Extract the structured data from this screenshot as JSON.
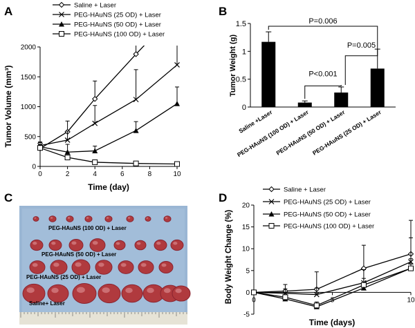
{
  "panel_letters": {
    "a": "A",
    "b": "B",
    "c": "C",
    "d": "D"
  },
  "chart_data": [
    {
      "id": "A",
      "type": "line",
      "title": "",
      "xlabel": "Time (day)",
      "ylabel": "Tumor Volume (mm³)",
      "xlim": [
        0,
        10
      ],
      "ylim": [
        0,
        2000
      ],
      "xticks": [
        0,
        2,
        4,
        6,
        8,
        10
      ],
      "yticks": [
        0,
        500,
        1000,
        1500,
        2000
      ],
      "legend_position": "top",
      "series": [
        {
          "name": "Saline + Laser",
          "marker": "diamond",
          "x": [
            0,
            2,
            4,
            7,
            10
          ],
          "y": [
            300,
            580,
            1130,
            1880,
            2600
          ],
          "err": [
            60,
            180,
            300,
            200,
            300
          ]
        },
        {
          "name": "PEG-HAuNS (25 OD) + Laser",
          "marker": "x",
          "x": [
            0,
            2,
            4,
            7,
            10
          ],
          "y": [
            350,
            440,
            720,
            1120,
            1700
          ],
          "err": [
            50,
            150,
            300,
            500,
            600
          ]
        },
        {
          "name": "PEG-HAuNS (50 OD) + Laser",
          "marker": "triangle",
          "x": [
            0,
            2,
            4,
            7,
            10
          ],
          "y": [
            330,
            240,
            260,
            600,
            1050
          ],
          "err": [
            80,
            130,
            80,
            150,
            280
          ]
        },
        {
          "name": "PEG-HAuNS (100 OD) + Laser",
          "marker": "square",
          "x": [
            0,
            2,
            4,
            7,
            10
          ],
          "y": [
            310,
            150,
            70,
            50,
            40
          ],
          "err": [
            40,
            40,
            20,
            10,
            10
          ]
        }
      ]
    },
    {
      "id": "B",
      "type": "bar",
      "title": "",
      "xlabel": "",
      "ylabel": "Tumor Weight (g)",
      "ylim": [
        0,
        1.5
      ],
      "yticks": [
        0,
        0.5,
        1,
        1.5
      ],
      "yticklabels": [
        "0",
        "0.5",
        "1",
        "1.5"
      ],
      "categories": [
        "Saline +Laser",
        "PEG-HAuNS (100 OD) + Laser",
        "PEG-HAuNS (50 OD) + Laser",
        "PEG-HAuNS (25 OD) + Laser"
      ],
      "values": [
        1.17,
        0.08,
        0.26,
        0.69
      ],
      "errors": [
        0.18,
        0.03,
        0.1,
        0.35
      ],
      "annotations": [
        {
          "text": "P=0.006",
          "from": 0,
          "to": 3
        },
        {
          "text": "P<0.001",
          "from": 1,
          "to": 2
        },
        {
          "text": "P=0.005",
          "from": 2,
          "to": 3
        }
      ]
    },
    {
      "id": "D",
      "type": "line",
      "title": "",
      "xlabel": "Time (days)",
      "ylabel": "Body Weight Change (%)",
      "xlim": [
        0,
        10
      ],
      "ylim": [
        -5,
        20
      ],
      "xticks": [
        0,
        5,
        10
      ],
      "yticks": [
        -5,
        0,
        5,
        10,
        15,
        20
      ],
      "legend_position": "top",
      "series": [
        {
          "name": "Saline + Laser",
          "marker": "diamond",
          "x": [
            0,
            2,
            4,
            7,
            10
          ],
          "y": [
            0,
            0.3,
            0.7,
            5.5,
            8.8
          ],
          "err": [
            0.3,
            1.5,
            4.0,
            5.3,
            7.7
          ]
        },
        {
          "name": "PEG-HAuNS (25 OD) + Laser",
          "marker": "x",
          "x": [
            0,
            2,
            4,
            7,
            10
          ],
          "y": [
            0,
            -0.2,
            -0.5,
            2.2,
            7.0
          ],
          "err": [
            0.3,
            1.0,
            1.5,
            3.0,
            5.5
          ]
        },
        {
          "name": "PEG-HAuNS (50 OD) + Laser",
          "marker": "triangle",
          "x": [
            0,
            2,
            4,
            7,
            10
          ],
          "y": [
            0,
            -1.5,
            -3.3,
            1.0,
            5.5
          ],
          "err": [
            0.3,
            0.5,
            0.8,
            1.0,
            1.0
          ]
        },
        {
          "name": "PEG-HAuNS (100 OD) + Laser",
          "marker": "square",
          "x": [
            0,
            2,
            4,
            7,
            10
          ],
          "y": [
            0,
            -1.1,
            -3.0,
            1.7,
            5.5
          ],
          "err": [
            0.3,
            0.5,
            0.8,
            1.5,
            2.2
          ]
        }
      ]
    }
  ],
  "photo_c": {
    "labels": [
      "PEG-HAuNS (100 OD) + Laser",
      "PEG-HAuNS (50 OD) + Laser",
      "PEG-HAuNS (25 OD) + Laser",
      "Saline+ Laser"
    ]
  },
  "colors": {
    "bar_fill": "#000000",
    "photo_bg": "#9ab6d4",
    "tumor": "#b03a3e",
    "tumor_dark": "#8a2430",
    "ruler": "#e6e3d6"
  }
}
